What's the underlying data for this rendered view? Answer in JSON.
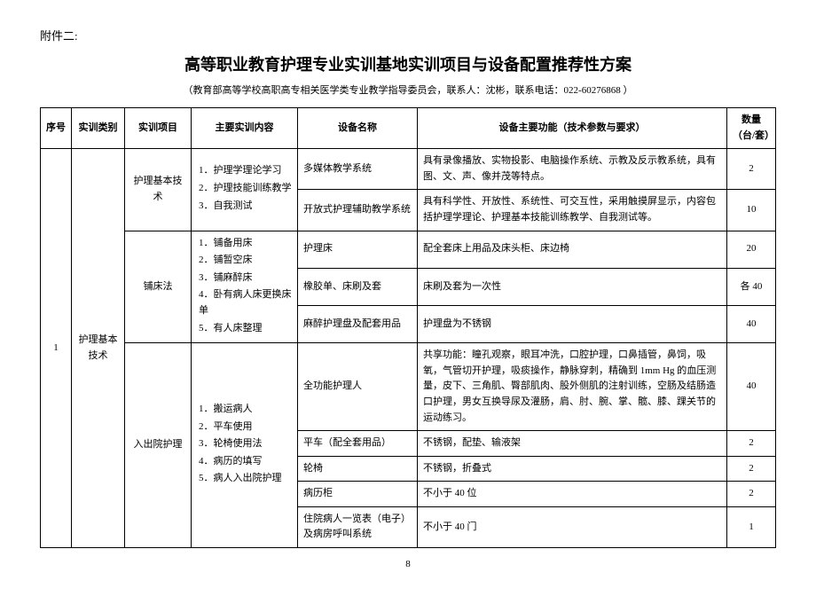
{
  "attachment_label": "附件二:",
  "main_title": "高等职业教育护理专业实训基地实训项目与设备配置推荐性方案",
  "subtitle": "（教育部高等学校高职高专相关医学类专业教学指导委员会，联系人：沈彬，联系电话：022-60276868 ）",
  "headers": {
    "seq": "序号",
    "category": "实训类别",
    "project": "实训项目",
    "content": "主要实训内容",
    "device": "设备名称",
    "function": "设备主要功能（技术参数与要求）",
    "qty": "数量（台/套）"
  },
  "row_seq": "1",
  "row_category": "护理基本技术",
  "projects": {
    "p1": {
      "name": "护理基本技术",
      "content_items": [
        "1．护理学理论学习",
        "2．护理技能训练教学",
        "3．自我测试"
      ],
      "devices": [
        {
          "name": "多媒体教学系统",
          "func": "具有录像播放、实物投影、电脑操作系统、示教及反示教系统，具有图、文、声、像并茂等特点。",
          "qty": "2"
        },
        {
          "name": "开放式护理辅助教学系统",
          "func": "具有科学性、开放性、系统性、可交互性，采用触摸屏显示，内容包括护理学理论、护理基本技能训练教学、自我测试等。",
          "qty": "10"
        }
      ]
    },
    "p2": {
      "name": "铺床法",
      "content_items": [
        "1．铺备用床",
        "2．铺暂空床",
        "3．铺麻醉床",
        "4．卧有病人床更换床单",
        "5．有人床整理"
      ],
      "devices": [
        {
          "name": "护理床",
          "func": "配全套床上用品及床头柜、床边椅",
          "qty": "20"
        },
        {
          "name": "橡胶单、床刷及套",
          "func": "床刷及套为一次性",
          "qty": "各 40"
        },
        {
          "name": "麻醉护理盘及配套用品",
          "func": "护理盘为不锈钢",
          "qty": "40"
        }
      ]
    },
    "p3": {
      "name": "入出院护理",
      "content_items": [
        "1．搬运病人",
        "2．平车使用",
        "3．轮椅使用法",
        "4．病历的填写",
        "5．病人入出院护理"
      ],
      "devices": [
        {
          "name": "全功能护理人",
          "func": "共享功能：瞳孔观察，眼耳冲洗，口腔护理，口鼻插管，鼻饲，吸氧，气管切开护理，吸痰操作，静脉穿刺，精确到 1mm Hg 的血压测量，皮下、三角肌、臀部肌肉、股外侧肌的注射训练，空肠及结肠造口护理，男女互换导尿及灌肠，肩、肘、腕、掌、髋、膝、踝关节的运动练习。",
          "qty": "40"
        },
        {
          "name": "平车（配全套用品）",
          "func": "不锈钢，配垫、输液架",
          "qty": "2"
        },
        {
          "name": "轮椅",
          "func": "不锈钢，折叠式",
          "qty": "2"
        },
        {
          "name": "病历柜",
          "func": "不小于 40 位",
          "qty": "2"
        },
        {
          "name": "住院病人一览表（电子）及病房呼叫系统",
          "func": "不小于 40 门",
          "qty": "1"
        }
      ]
    }
  },
  "page_number": "8"
}
